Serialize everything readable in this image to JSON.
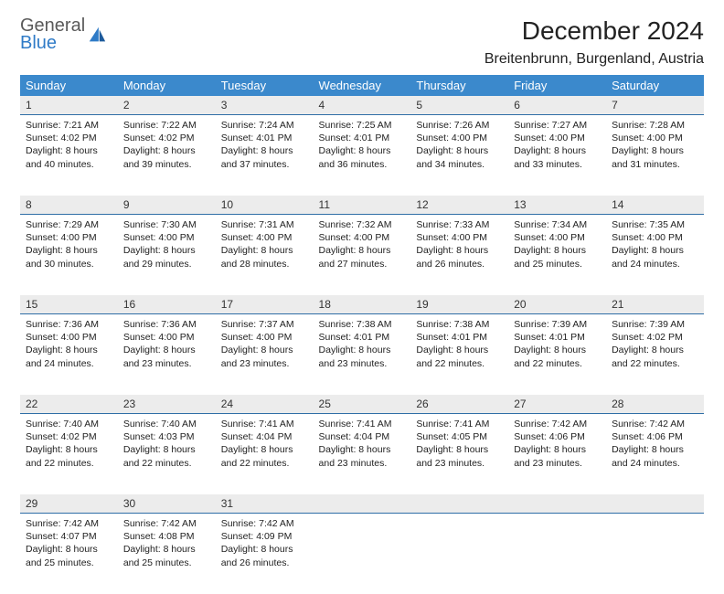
{
  "brand": {
    "line1": "General",
    "line2": "Blue"
  },
  "title": "December 2024",
  "location": "Breitenbrunn, Burgenland, Austria",
  "colors": {
    "header_bg": "#3b89cc",
    "header_text": "#ffffff",
    "daynum_bg": "#ececec",
    "daynum_border": "#2f6ea6",
    "logo_gray": "#5a5a5a",
    "logo_blue": "#2f7bc7"
  },
  "weekdays": [
    "Sunday",
    "Monday",
    "Tuesday",
    "Wednesday",
    "Thursday",
    "Friday",
    "Saturday"
  ],
  "weeks": [
    [
      {
        "n": "1",
        "sr": "Sunrise: 7:21 AM",
        "ss": "Sunset: 4:02 PM",
        "d1": "Daylight: 8 hours",
        "d2": "and 40 minutes."
      },
      {
        "n": "2",
        "sr": "Sunrise: 7:22 AM",
        "ss": "Sunset: 4:02 PM",
        "d1": "Daylight: 8 hours",
        "d2": "and 39 minutes."
      },
      {
        "n": "3",
        "sr": "Sunrise: 7:24 AM",
        "ss": "Sunset: 4:01 PM",
        "d1": "Daylight: 8 hours",
        "d2": "and 37 minutes."
      },
      {
        "n": "4",
        "sr": "Sunrise: 7:25 AM",
        "ss": "Sunset: 4:01 PM",
        "d1": "Daylight: 8 hours",
        "d2": "and 36 minutes."
      },
      {
        "n": "5",
        "sr": "Sunrise: 7:26 AM",
        "ss": "Sunset: 4:00 PM",
        "d1": "Daylight: 8 hours",
        "d2": "and 34 minutes."
      },
      {
        "n": "6",
        "sr": "Sunrise: 7:27 AM",
        "ss": "Sunset: 4:00 PM",
        "d1": "Daylight: 8 hours",
        "d2": "and 33 minutes."
      },
      {
        "n": "7",
        "sr": "Sunrise: 7:28 AM",
        "ss": "Sunset: 4:00 PM",
        "d1": "Daylight: 8 hours",
        "d2": "and 31 minutes."
      }
    ],
    [
      {
        "n": "8",
        "sr": "Sunrise: 7:29 AM",
        "ss": "Sunset: 4:00 PM",
        "d1": "Daylight: 8 hours",
        "d2": "and 30 minutes."
      },
      {
        "n": "9",
        "sr": "Sunrise: 7:30 AM",
        "ss": "Sunset: 4:00 PM",
        "d1": "Daylight: 8 hours",
        "d2": "and 29 minutes."
      },
      {
        "n": "10",
        "sr": "Sunrise: 7:31 AM",
        "ss": "Sunset: 4:00 PM",
        "d1": "Daylight: 8 hours",
        "d2": "and 28 minutes."
      },
      {
        "n": "11",
        "sr": "Sunrise: 7:32 AM",
        "ss": "Sunset: 4:00 PM",
        "d1": "Daylight: 8 hours",
        "d2": "and 27 minutes."
      },
      {
        "n": "12",
        "sr": "Sunrise: 7:33 AM",
        "ss": "Sunset: 4:00 PM",
        "d1": "Daylight: 8 hours",
        "d2": "and 26 minutes."
      },
      {
        "n": "13",
        "sr": "Sunrise: 7:34 AM",
        "ss": "Sunset: 4:00 PM",
        "d1": "Daylight: 8 hours",
        "d2": "and 25 minutes."
      },
      {
        "n": "14",
        "sr": "Sunrise: 7:35 AM",
        "ss": "Sunset: 4:00 PM",
        "d1": "Daylight: 8 hours",
        "d2": "and 24 minutes."
      }
    ],
    [
      {
        "n": "15",
        "sr": "Sunrise: 7:36 AM",
        "ss": "Sunset: 4:00 PM",
        "d1": "Daylight: 8 hours",
        "d2": "and 24 minutes."
      },
      {
        "n": "16",
        "sr": "Sunrise: 7:36 AM",
        "ss": "Sunset: 4:00 PM",
        "d1": "Daylight: 8 hours",
        "d2": "and 23 minutes."
      },
      {
        "n": "17",
        "sr": "Sunrise: 7:37 AM",
        "ss": "Sunset: 4:00 PM",
        "d1": "Daylight: 8 hours",
        "d2": "and 23 minutes."
      },
      {
        "n": "18",
        "sr": "Sunrise: 7:38 AM",
        "ss": "Sunset: 4:01 PM",
        "d1": "Daylight: 8 hours",
        "d2": "and 23 minutes."
      },
      {
        "n": "19",
        "sr": "Sunrise: 7:38 AM",
        "ss": "Sunset: 4:01 PM",
        "d1": "Daylight: 8 hours",
        "d2": "and 22 minutes."
      },
      {
        "n": "20",
        "sr": "Sunrise: 7:39 AM",
        "ss": "Sunset: 4:01 PM",
        "d1": "Daylight: 8 hours",
        "d2": "and 22 minutes."
      },
      {
        "n": "21",
        "sr": "Sunrise: 7:39 AM",
        "ss": "Sunset: 4:02 PM",
        "d1": "Daylight: 8 hours",
        "d2": "and 22 minutes."
      }
    ],
    [
      {
        "n": "22",
        "sr": "Sunrise: 7:40 AM",
        "ss": "Sunset: 4:02 PM",
        "d1": "Daylight: 8 hours",
        "d2": "and 22 minutes."
      },
      {
        "n": "23",
        "sr": "Sunrise: 7:40 AM",
        "ss": "Sunset: 4:03 PM",
        "d1": "Daylight: 8 hours",
        "d2": "and 22 minutes."
      },
      {
        "n": "24",
        "sr": "Sunrise: 7:41 AM",
        "ss": "Sunset: 4:04 PM",
        "d1": "Daylight: 8 hours",
        "d2": "and 22 minutes."
      },
      {
        "n": "25",
        "sr": "Sunrise: 7:41 AM",
        "ss": "Sunset: 4:04 PM",
        "d1": "Daylight: 8 hours",
        "d2": "and 23 minutes."
      },
      {
        "n": "26",
        "sr": "Sunrise: 7:41 AM",
        "ss": "Sunset: 4:05 PM",
        "d1": "Daylight: 8 hours",
        "d2": "and 23 minutes."
      },
      {
        "n": "27",
        "sr": "Sunrise: 7:42 AM",
        "ss": "Sunset: 4:06 PM",
        "d1": "Daylight: 8 hours",
        "d2": "and 23 minutes."
      },
      {
        "n": "28",
        "sr": "Sunrise: 7:42 AM",
        "ss": "Sunset: 4:06 PM",
        "d1": "Daylight: 8 hours",
        "d2": "and 24 minutes."
      }
    ],
    [
      {
        "n": "29",
        "sr": "Sunrise: 7:42 AM",
        "ss": "Sunset: 4:07 PM",
        "d1": "Daylight: 8 hours",
        "d2": "and 25 minutes."
      },
      {
        "n": "30",
        "sr": "Sunrise: 7:42 AM",
        "ss": "Sunset: 4:08 PM",
        "d1": "Daylight: 8 hours",
        "d2": "and 25 minutes."
      },
      {
        "n": "31",
        "sr": "Sunrise: 7:42 AM",
        "ss": "Sunset: 4:09 PM",
        "d1": "Daylight: 8 hours",
        "d2": "and 26 minutes."
      },
      null,
      null,
      null,
      null
    ]
  ]
}
